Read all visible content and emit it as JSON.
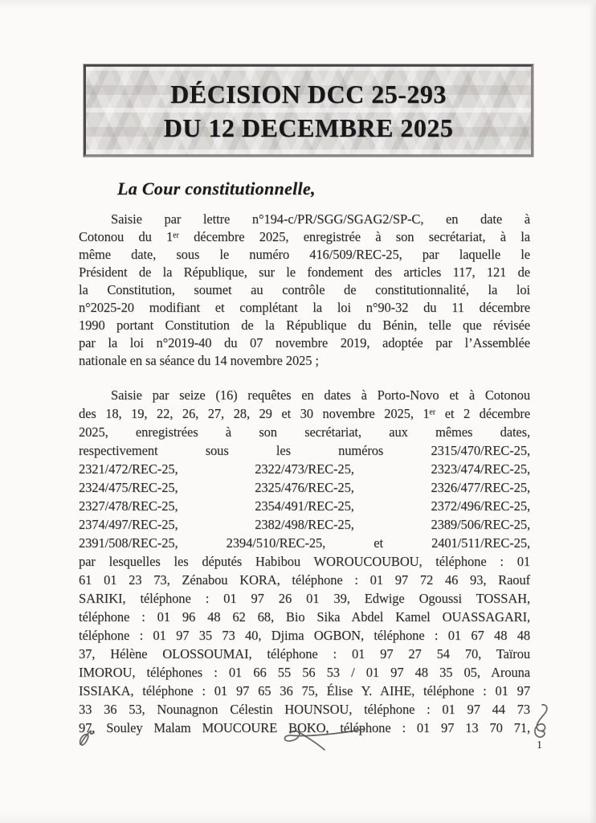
{
  "header": {
    "line1": "DÉCISION DCC 25-293",
    "line2": "DU 12 DECEMBRE 2025"
  },
  "heading": "La Cour constitutionnelle,",
  "paragraphs": [
    {
      "name": "saisine-president",
      "indent_first": true,
      "last_left": true,
      "lines": [
        "Saisie par lettre n°194-c/PR/SGG/SGAG2/SP-C, en date à",
        "Cotonou du 1ᵉʳ décembre 2025, enregistrée à son secrétariat, à la",
        "même date, sous le numéro 416/509/REC-25, par laquelle le",
        "Président de la République, sur le fondement des articles 117, 121 de",
        "la Constitution, soumet au contrôle de constitutionnalité, la loi",
        "n°2025-20 modifiant et complétant la loi n°90-32 du 11 décembre",
        "1990 portant Constitution de la République du Bénin, telle que révisée",
        "par la loi n°2019-40 du 07 novembre 2019, adoptée par l’Assemblée",
        "nationale en sa séance du 14 novembre 2025 ;"
      ]
    },
    {
      "name": "saisine-deputes",
      "indent_first": true,
      "last_left": false,
      "lines": [
        "Saisie par seize (16) requêtes en dates à Porto-Novo et à Cotonou",
        "des 18, 19, 22, 26, 27, 28, 29 et 30 novembre 2025, 1ᵉʳ et 2 décembre",
        "2025, enregistrées à son secrétariat, aux mêmes dates,",
        "respectivement sous les numéros 2315/470/REC-25,",
        "2321/472/REC-25, 2322/473/REC-25, 2323/474/REC-25,",
        "2324/475/REC-25, 2325/476/REC-25, 2326/477/REC-25,",
        "2327/478/REC-25, 2354/491/REC-25, 2372/496/REC-25,",
        "2374/497/REC-25, 2382/498/REC-25, 2389/506/REC-25,",
        "2391/508/REC-25, 2394/510/REC-25, et 2401/511/REC-25,",
        "par lesquelles les députés Habibou WOROUCOUBOU, téléphone : 01",
        "61 01 23 73, Zénabou KORA, téléphone : 01 97 72 46 93, Raouf",
        "SARIKI, téléphone : 01 97 26 01 39, Edwige Ogoussi TOSSAH,",
        "téléphone : 01 96 48 62 68, Bio Sika Abdel Kamel OUASSAGARI,",
        "téléphone : 01 97 35 73 40, Djima OGBON, téléphone : 01 67 48 48",
        "37, Hélène OLOSSOUMAI, téléphone : 01 97 27 54 70, Taïrou",
        "IMOROU, téléphones : 01 66 55 56 53 / 01 97 48 35 05, Arouna",
        "ISSIAKA, téléphone : 01 97 65 36 75, Élise Y. AIHE, téléphone : 01 97",
        "33 36 53, Nounagnon Célestin HOUNSOU, téléphone : 01 97 44 73",
        "97, Souley Malam MOUCOURE BOKO, téléphone : 01 97 13 70 71,"
      ]
    }
  ],
  "annotations": {
    "handwritten_marks": [
      "initial-bottom-left",
      "cross-mark-center",
      "paraph-right"
    ]
  },
  "page": {
    "number": "1"
  },
  "colors": {
    "paper": "#fbfaf8",
    "title_box_fill": "#dbd9d6",
    "title_box_border": "#4c4b49",
    "ink": "#2b2a28"
  }
}
